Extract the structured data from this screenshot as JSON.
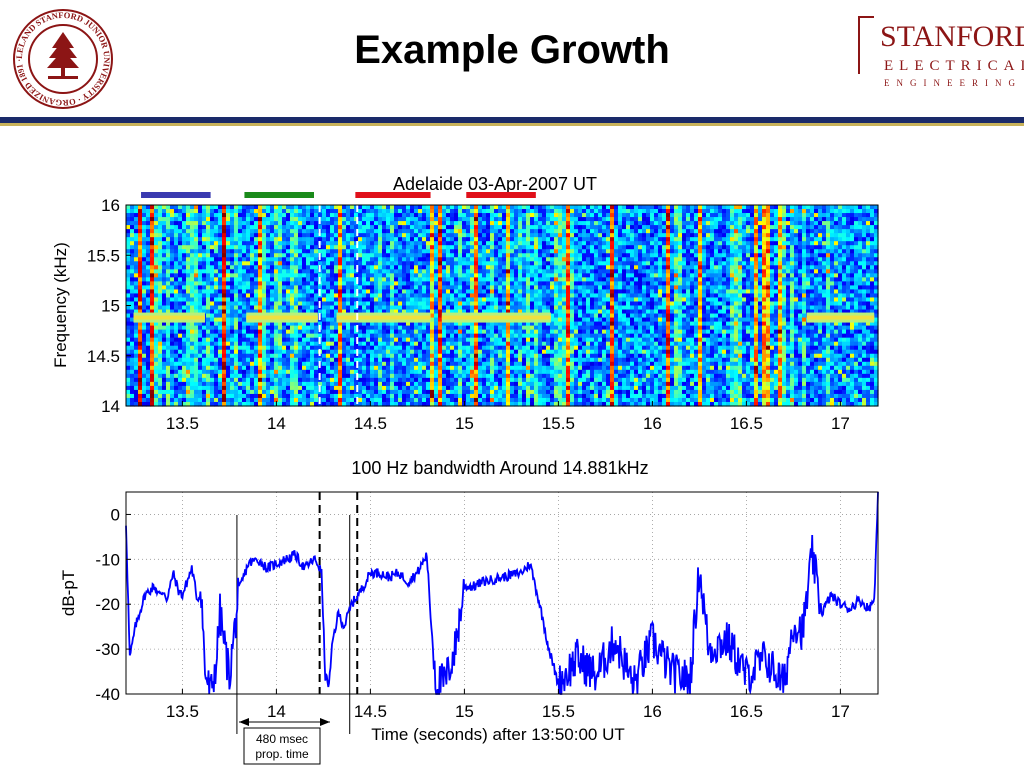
{
  "slide": {
    "title": "Example Growth",
    "seal_text": "LELAND STANFORD JUNIOR UNIVERSITY · ORGANIZED 1891",
    "logo_line1": "STANFORD",
    "logo_line2": "ELECTRICAL",
    "logo_line3": "ENGINEERING"
  },
  "colors": {
    "navy": "#1a2a6a",
    "gold": "#c8b25a",
    "cardinal": "#8c1515",
    "trace": "#0000ff"
  },
  "chart_data": [
    {
      "type": "heatmap",
      "title": "Adelaide 03-Apr-2007 UT",
      "ylabel": "Frequency (kHz)",
      "xlabel": "",
      "xlim": [
        13.2,
        17.2
      ],
      "ylim": [
        14,
        16
      ],
      "xticks": [
        "13.5",
        "14",
        "14.5",
        "15",
        "15.5",
        "16",
        "16.5",
        "17"
      ],
      "yticks": [
        "14",
        "14.5",
        "15",
        "15.5",
        "16"
      ],
      "tone_frequency_khz": 14.88,
      "tone_segments": [
        {
          "start": 13.24,
          "end": 13.62
        },
        {
          "start": 13.84,
          "end": 14.22
        },
        {
          "start": 14.32,
          "end": 14.82
        },
        {
          "start": 14.88,
          "end": 15.46
        },
        {
          "start": 16.82,
          "end": 17.18
        }
      ],
      "dashed_markers": [
        14.23,
        14.43
      ],
      "bars_above": [
        {
          "color": "#3a3ab0",
          "start": 13.28,
          "end": 13.65
        },
        {
          "color": "#1a8a1a",
          "start": 13.83,
          "end": 14.2
        },
        {
          "color": "#e0101a",
          "start": 14.42,
          "end": 14.82
        },
        {
          "color": "#e0101a",
          "start": 15.01,
          "end": 15.38
        }
      ]
    },
    {
      "type": "line",
      "title": "100 Hz bandwidth Around 14.881kHz",
      "xlabel": "Time (seconds) after 13:50:00 UT",
      "ylabel": "dB-pT",
      "xlim": [
        13.2,
        17.2
      ],
      "ylim": [
        -40,
        5
      ],
      "xticks": [
        "13.5",
        "14",
        "14.5",
        "15",
        "15.5",
        "16",
        "16.5",
        "17"
      ],
      "yticks": [
        "0",
        "-10",
        "-20",
        "-30",
        "-40"
      ],
      "grid": true,
      "dashed_markers": [
        14.23,
        14.43
      ],
      "solid_markers": [
        13.79,
        14.39
      ],
      "series": [
        {
          "x": [
            13.2,
            13.22,
            13.25,
            13.3,
            13.35,
            13.38,
            13.4,
            13.42,
            13.45,
            13.48,
            13.5,
            13.55,
            13.58,
            13.6,
            13.62,
            13.65,
            13.68,
            13.7,
            13.72,
            13.75,
            13.78,
            13.8,
            13.85,
            13.9,
            13.95,
            14.0,
            14.05,
            14.1,
            14.15,
            14.2,
            14.22,
            14.24,
            14.26,
            14.28,
            14.3,
            14.33,
            14.36,
            14.4,
            14.45,
            14.5,
            14.55,
            14.6,
            14.65,
            14.7,
            14.75,
            14.8,
            14.82,
            14.85,
            14.9,
            14.95,
            15.0,
            15.05,
            15.1,
            15.2,
            15.3,
            15.35,
            15.4,
            15.45,
            15.5,
            15.6,
            15.7,
            15.8,
            15.9,
            16.0,
            16.1,
            16.2,
            16.25,
            16.3,
            16.4,
            16.5,
            16.6,
            16.7,
            16.75,
            16.8,
            16.85,
            16.9,
            16.95,
            17.0,
            17.05,
            17.1,
            17.15,
            17.18,
            17.2
          ],
          "y": [
            -2,
            -32,
            -25,
            -18,
            -16,
            -18,
            -17,
            -19,
            -13,
            -17,
            -18,
            -12,
            -19,
            -17,
            -35,
            -40,
            -33,
            -22,
            -28,
            -36,
            -25,
            -17,
            -11,
            -10,
            -12,
            -11,
            -10,
            -9,
            -12,
            -10,
            -11,
            -13,
            -36,
            -38,
            -28,
            -22,
            -25,
            -20,
            -17,
            -13,
            -13,
            -14,
            -13,
            -15,
            -13,
            -9,
            -22,
            -38,
            -37,
            -30,
            -16,
            -16,
            -15,
            -14,
            -13,
            -11,
            -20,
            -30,
            -38,
            -32,
            -36,
            -28,
            -38,
            -28,
            -35,
            -37,
            -12,
            -30,
            -28,
            -36,
            -32,
            -38,
            -24,
            -26,
            -9,
            -22,
            -18,
            -20,
            -21,
            -19,
            -21,
            -19,
            5
          ]
        }
      ]
    }
  ],
  "annotations": {
    "prop_label_line1": "480 msec",
    "prop_label_line2": "prop. time"
  }
}
